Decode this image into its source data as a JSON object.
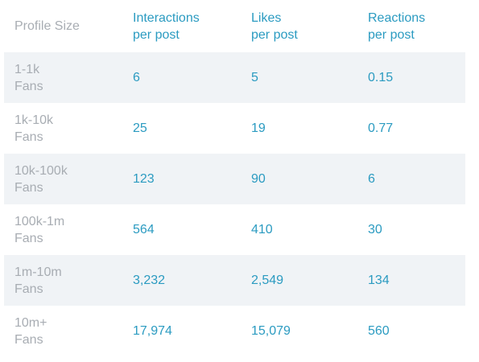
{
  "table": {
    "header": [
      [
        "Profile Size"
      ],
      [
        "Interactions",
        "per post"
      ],
      [
        "Likes",
        "per post"
      ],
      [
        "Reactions",
        "per post"
      ]
    ],
    "rows": [
      {
        "label": [
          "1-1k",
          "Fans"
        ],
        "cells": [
          6,
          5,
          0.15
        ]
      },
      {
        "label": [
          "1k-10k",
          "Fans"
        ],
        "cells": [
          25,
          19,
          0.77
        ]
      },
      {
        "label": [
          "10k-100k",
          "Fans"
        ],
        "cells": [
          123,
          90,
          6
        ]
      },
      {
        "label": [
          "100k-1m",
          "Fans"
        ],
        "cells": [
          564,
          410,
          30
        ]
      },
      {
        "label": [
          "1m-10m",
          "Fans"
        ],
        "cells": [
          "3,232",
          "2,549",
          134
        ]
      },
      {
        "label": [
          "10m+",
          "Fans"
        ],
        "cells": [
          "17,974",
          "15,079",
          560
        ]
      }
    ]
  }
}
